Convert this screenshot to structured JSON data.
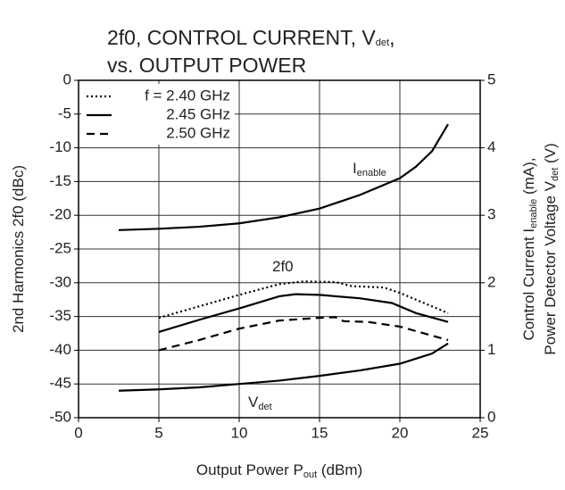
{
  "chart_data": {
    "type": "line",
    "title": [
      [
        {
          "t": "2f0, CONTROL CURRENT, V"
        },
        {
          "t": "det",
          "sub": true
        },
        {
          "t": ","
        }
      ],
      [
        {
          "t": "vs. OUTPUT POWER"
        }
      ]
    ],
    "xlabel": [
      {
        "t": "Output Power  P"
      },
      {
        "t": "out",
        "sub": true
      },
      {
        "t": " (dBm)"
      }
    ],
    "ylabel": [
      {
        "t": "2nd Harmonics  2f0 (dBc)"
      }
    ],
    "y2label": [
      [
        {
          "t": "Control Current  I"
        },
        {
          "t": "enable",
          "sub": true
        },
        {
          "t": " (mA),"
        }
      ],
      [
        {
          "t": "Power Detector Voltage  V"
        },
        {
          "t": "det",
          "sub": true
        },
        {
          "t": " (V)"
        }
      ]
    ],
    "xlim": [
      0,
      25
    ],
    "xticks": [
      0,
      5,
      10,
      15,
      20,
      25
    ],
    "ylim": [
      -50,
      0
    ],
    "yticks": [
      0,
      -5,
      -10,
      -15,
      -20,
      -25,
      -30,
      -35,
      -40,
      -45,
      -50
    ],
    "y2lim": [
      0,
      5
    ],
    "y2ticks": [
      0,
      1,
      2,
      3,
      4,
      5
    ],
    "grid": true,
    "legend": "upper left",
    "series": [
      {
        "name": "f = 2.40 GHz",
        "color": "#000000",
        "dash": "dotted",
        "x": [
          5,
          7.5,
          10,
          12.5,
          14,
          16,
          17,
          19,
          20,
          23
        ],
        "values": [
          -35.2,
          -33.5,
          -31.8,
          -30.2,
          -29.8,
          -29.9,
          -30.5,
          -30.7,
          -31.5,
          -34.5
        ]
      },
      {
        "name": "2.45 GHz",
        "color": "#000000",
        "dash": "solid",
        "x": [
          5,
          7.5,
          10,
          12.5,
          13.5,
          15,
          17.5,
          19.5,
          21,
          23
        ],
        "values": [
          -37.3,
          -35.5,
          -33.8,
          -32,
          -31.7,
          -31.8,
          -32.3,
          -33,
          -34.5,
          -35.8
        ]
      },
      {
        "name": "2.50 GHz",
        "color": "#000000",
        "dash": "dashed",
        "x": [
          5,
          7.5,
          10,
          12.5,
          15,
          16,
          16.5,
          18,
          20,
          23
        ],
        "values": [
          -40,
          -38.5,
          -36.8,
          -35.6,
          -35.2,
          -35.1,
          -35.7,
          -35.8,
          -36.5,
          -38.5
        ]
      }
    ],
    "y2_series": [
      {
        "axis": "y2",
        "color": "#000000",
        "x": [
          2.5,
          5,
          7.5,
          10,
          12.5,
          15,
          17.5,
          20,
          21,
          22,
          23
        ],
        "values": [
          2.78,
          2.8,
          2.83,
          2.88,
          2.97,
          3.1,
          3.3,
          3.55,
          3.72,
          3.95,
          4.35
        ]
      },
      {
        "axis": "y2",
        "color": "#000000",
        "x": [
          2.5,
          5,
          7.5,
          10,
          12.5,
          15,
          17.5,
          20,
          22,
          23
        ],
        "values": [
          0.4,
          0.42,
          0.45,
          0.5,
          0.55,
          0.62,
          0.7,
          0.8,
          0.95,
          1.1
        ]
      }
    ],
    "annotations": [
      [
        {
          "t": "I"
        },
        {
          "t": "enable",
          "sub": true
        }
      ],
      [
        {
          "t": "2f0"
        }
      ],
      [
        {
          "t": "V"
        },
        {
          "t": "det",
          "sub": true
        }
      ]
    ]
  }
}
